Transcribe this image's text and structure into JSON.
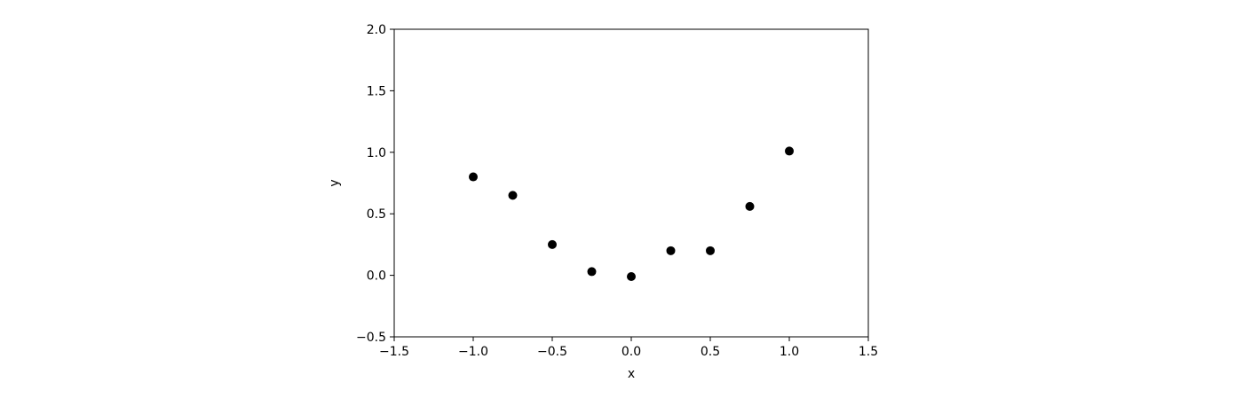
{
  "chart_data": {
    "type": "scatter",
    "title": "",
    "xlabel": "x",
    "ylabel": "y",
    "xlim": [
      -1.5,
      1.5
    ],
    "ylim": [
      -0.5,
      2.0
    ],
    "xticks": [
      -1.5,
      -1.0,
      -0.5,
      0.0,
      0.5,
      1.0,
      1.5
    ],
    "yticks": [
      -0.5,
      0.0,
      0.5,
      1.0,
      1.5,
      2.0
    ],
    "xtick_labels": [
      "−1.5",
      "−1.0",
      "−0.5",
      "0.0",
      "0.5",
      "1.0",
      "1.5"
    ],
    "ytick_labels": [
      "−0.5",
      "0.0",
      "0.5",
      "1.0",
      "1.5",
      "2.0"
    ],
    "grid": false,
    "legend": false,
    "marker_color": "#000000",
    "series": [
      {
        "x": [
          -1.0,
          -0.75,
          -0.5,
          -0.25,
          0.0,
          0.25,
          0.5,
          0.75,
          1.0
        ],
        "y": [
          0.8,
          0.65,
          0.25,
          0.03,
          -0.01,
          0.2,
          0.2,
          0.56,
          1.01
        ]
      }
    ]
  }
}
